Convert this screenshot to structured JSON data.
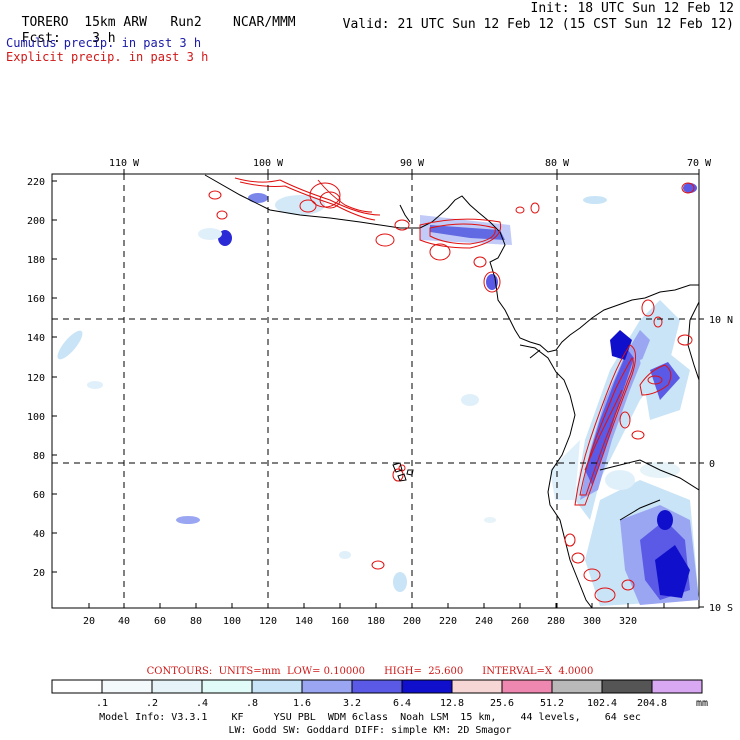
{
  "header": {
    "model": "TORERO",
    "resolution": "15km ARW",
    "run": "Run2",
    "org": "NCAR/MMM",
    "init_text": "Init: 18 UTC Sun 12 Feb 12",
    "fcst_label": "Fcst:",
    "fcst_value": "3 h",
    "valid_text": "Valid: 21 UTC Sun 12 Feb 12 (15 CST Sun 12 Feb 12)",
    "field1": "Cumulus precip. in past 3 h",
    "field2": "Explicit precip. in past 3 h"
  },
  "colors": {
    "field1_text": "#1a1aa8",
    "field2_text": "#d01818",
    "contour_line": "#e01010",
    "coast_line": "#000000",
    "gridline": "#000000"
  },
  "map": {
    "lon_labels": [
      "110 W",
      "100 W",
      "90 W",
      "80 W",
      "70 W"
    ],
    "lat_labels": [
      "10 N",
      "0",
      "10 S"
    ],
    "y_ticks": [
      "20",
      "40",
      "60",
      "80",
      "100",
      "120",
      "140",
      "160",
      "180",
      "200",
      "220"
    ],
    "x_ticks": [
      "20",
      "40",
      "60",
      "80",
      "100",
      "120",
      "140",
      "160",
      "180",
      "200",
      "220",
      "240",
      "260",
      "280",
      "300",
      "320"
    ]
  },
  "legend": {
    "contour_info": "CONTOURS:  UNITS=mm  LOW= 0.10000      HIGH=  25.600      INTERVAL=X  4.0000",
    "labels": [
      ".1",
      ".2",
      ".4",
      ".8",
      "1.6",
      "3.2",
      "6.4",
      "12.8",
      "25.6",
      "51.2",
      "102.4",
      "204.8"
    ],
    "units": "mm",
    "colors": [
      "#ffffff",
      "#f4f9fc",
      "#e6f3f9",
      "#e0fbf8",
      "#c9e4f6",
      "#9aa6f1",
      "#5a5ae6",
      "#1010cc",
      "#f7d6d6",
      "#ef88b1",
      "#b9b9b9",
      "#555555",
      "#d9a8f3"
    ]
  },
  "footer": {
    "line1": "Model Info: V3.3.1    KF     YSU PBL  WDM 6class  Noah LSM  15 km,    44 levels,    64 sec",
    "line2": "LW: Godd SW: Goddard DIFF: simple KM: 2D Smagor"
  }
}
